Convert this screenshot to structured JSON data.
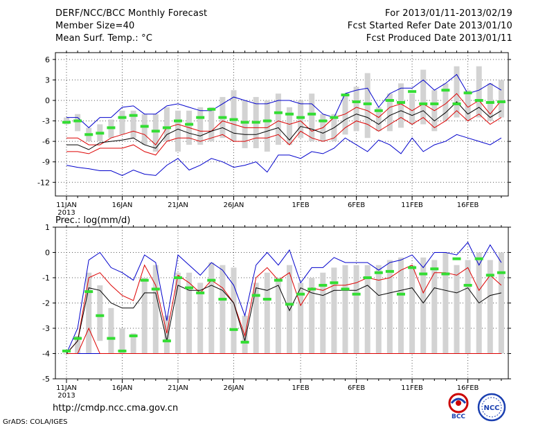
{
  "header": {
    "title": "DERF/NCC/BCC Monthly Forecast",
    "member_size": "Member Size=40",
    "variable": "Mean Surf. Temp.: °C",
    "period": "For 2013/01/11-2013/02/19",
    "refer_date": "Fcst Started Refer Date 2013/01/10",
    "produced_date": "Fcst Produced Date 2013/01/11"
  },
  "footer": {
    "url": "http://cmdp.ncc.cma.gov.cn",
    "grads": "GrADS: COLA/IGES",
    "logo_left": "BCC",
    "logo_right": "NCC"
  },
  "colors": {
    "blue": "#0000cc",
    "red": "#dd0000",
    "black": "#000000",
    "green": "#33dd33",
    "box": "#d3d3d3",
    "grid": "#555555"
  },
  "chart_data": [
    {
      "type": "box",
      "title": "Mean Surf. Temp.: °C",
      "ylim": [
        -14,
        7
      ],
      "yticks": [
        6,
        3,
        0,
        -3,
        -6,
        -9,
        -12
      ],
      "xlabels": [
        "11JAN",
        "16JAN",
        "21JAN",
        "26JAN",
        "1FEB",
        "6FEB",
        "11FEB",
        "16FEB"
      ],
      "xlabel_days": [
        1,
        6,
        11,
        16,
        22,
        27,
        32,
        37
      ],
      "year_label": "2013",
      "days": [
        1,
        2,
        3,
        4,
        5,
        6,
        7,
        8,
        9,
        10,
        11,
        12,
        13,
        14,
        15,
        16,
        17,
        18,
        19,
        20,
        21,
        22,
        23,
        24,
        25,
        26,
        27,
        28,
        29,
        30,
        31,
        32,
        33,
        34,
        35,
        36,
        37,
        38,
        39,
        40
      ],
      "max": [
        -2.5,
        -2.5,
        -4,
        -2.5,
        -2.5,
        -1,
        -0.8,
        -2,
        -2,
        -0.8,
        -0.5,
        -1,
        -1.5,
        -1.5,
        -0.5,
        0.5,
        0,
        -0.5,
        -0.5,
        0,
        0,
        -0.5,
        -0.5,
        -2,
        -2.5,
        1,
        1.5,
        1.8,
        -1,
        1,
        1.8,
        1.8,
        3,
        1.5,
        2.5,
        3.8,
        1,
        1.5,
        2.5,
        1.5
      ],
      "upper": [
        -5.5,
        -5.5,
        -6.5,
        -6.5,
        -5.5,
        -5,
        -4.5,
        -5,
        -6.5,
        -4,
        -3.5,
        -4,
        -4.5,
        -4.5,
        -3,
        -3.5,
        -4,
        -4,
        -4,
        -3,
        -3.5,
        -3,
        -4.5,
        -4,
        -2.5,
        -2,
        -1,
        -1.5,
        -2.5,
        -1,
        -0.5,
        -1.5,
        -0.5,
        -1.5,
        -0.5,
        1,
        -1,
        0,
        -2,
        0
      ],
      "mean": [
        -6.5,
        -6.5,
        -7.2,
        -6.2,
        -6,
        -5.8,
        -5.5,
        -6.5,
        -7,
        -5,
        -4.2,
        -4.8,
        -5.2,
        -4.5,
        -4,
        -4.8,
        -5,
        -5,
        -4.5,
        -4,
        -5.8,
        -3.8,
        -4.2,
        -4.8,
        -4,
        -2.8,
        -2,
        -2.5,
        -3.5,
        -2.2,
        -1.5,
        -2.2,
        -1.5,
        -3,
        -1.8,
        -0.2,
        -2,
        -1,
        -2.5,
        -1.5
      ],
      "lower": [
        -7.5,
        -7.5,
        -7.8,
        -7,
        -7,
        -7,
        -6.5,
        -7.5,
        -8,
        -6,
        -5.5,
        -5.5,
        -6,
        -5.5,
        -5,
        -6,
        -6,
        -5.5,
        -5.5,
        -5,
        -6.5,
        -4.5,
        -5.5,
        -6,
        -5.5,
        -4,
        -3,
        -3.5,
        -4.5,
        -3.5,
        -2.5,
        -3.5,
        -2.5,
        -4,
        -3,
        -1.5,
        -3,
        -2,
        -3.5,
        -2.5
      ],
      "min": [
        -9.5,
        -9.8,
        -10,
        -10.3,
        -10.3,
        -11,
        -10.2,
        -10.8,
        -11,
        -9.5,
        -8.5,
        -10.2,
        -9.5,
        -8.5,
        -9,
        -9.8,
        -9.5,
        -9,
        -10.5,
        -8,
        -8,
        -8.5,
        -7.5,
        -7.8,
        -7,
        -5.5,
        -6.5,
        -7.5,
        -5.8,
        -6.5,
        -7.8,
        -5.5,
        -7.5,
        -6.5,
        -6,
        -5,
        -5.5,
        -6,
        -6.5,
        -5.5
      ],
      "box_top": [
        -2.5,
        -2,
        -4,
        -3.5,
        -2.8,
        -1.5,
        -1.5,
        -2,
        -2,
        -1,
        -1.5,
        -1.5,
        -1,
        -1,
        0.5,
        1.5,
        0,
        0.5,
        0,
        1,
        -1,
        0,
        1,
        -2,
        -2,
        1,
        2,
        4,
        -1,
        1,
        2.5,
        1,
        4.5,
        1.5,
        2.5,
        5,
        1.5,
        5,
        2.5,
        3
      ],
      "box_bot": [
        -3.5,
        -4.5,
        -6,
        -6,
        -5.5,
        -5,
        -5.5,
        -6.5,
        -7.5,
        -6,
        -7.5,
        -6.5,
        -6.5,
        -6,
        -5.5,
        -6,
        -7,
        -7,
        -7.5,
        -6.5,
        -6.5,
        -5.5,
        -6,
        -6,
        -6,
        -5,
        -4.5,
        -5.5,
        -4.5,
        -4.5,
        -4,
        -3.5,
        -3.5,
        -4.5,
        -3,
        -2.5,
        -3,
        -2.5,
        -3,
        -2.5
      ],
      "green": [
        -3.2,
        -3,
        -5,
        -4.8,
        -4,
        -2.5,
        -2.2,
        -3.8,
        -4.5,
        -4,
        -3,
        -3.5,
        -2.5,
        -1.3,
        -2.5,
        -2.8,
        -3.2,
        -3.2,
        -3,
        -1.8,
        -2,
        -2.5,
        -2,
        -3,
        -2.5,
        0.8,
        -0.2,
        -0.5,
        -1.5,
        0,
        -0.3,
        1.3,
        -0.5,
        -0.5,
        1.5,
        -0.5,
        1.1,
        0,
        -0.3,
        -0.2
      ]
    },
    {
      "type": "box",
      "title": "Prec.: log(mm/d)",
      "ylim": [
        -5,
        1
      ],
      "yticks": [
        1,
        0,
        -1,
        -2,
        -3,
        -4,
        -5
      ],
      "xlabels": [
        "11JAN",
        "16JAN",
        "21JAN",
        "26JAN",
        "1FEB",
        "6FEB",
        "11FEB",
        "16FEB"
      ],
      "xlabel_days": [
        1,
        6,
        11,
        16,
        22,
        27,
        32,
        37
      ],
      "year_label": "2013",
      "days": [
        1,
        2,
        3,
        4,
        5,
        6,
        7,
        8,
        9,
        10,
        11,
        12,
        13,
        14,
        15,
        16,
        17,
        18,
        19,
        20,
        21,
        22,
        23,
        24,
        25,
        26,
        27,
        28,
        29,
        30,
        31,
        32,
        33,
        34,
        35,
        36,
        37,
        38,
        39,
        40
      ],
      "max": [
        -4,
        -3,
        -0.3,
        0,
        -0.6,
        -0.8,
        -1.1,
        -0.1,
        -0.4,
        -2.7,
        -0.1,
        -0.5,
        -0.9,
        -0.4,
        -0.7,
        -1.3,
        -2.5,
        -0.5,
        0,
        -0.5,
        0.1,
        -1.2,
        -0.6,
        -0.6,
        -0.2,
        -0.4,
        -0.4,
        -0.4,
        -0.7,
        -0.4,
        -0.3,
        -0.1,
        -0.6,
        0,
        0,
        -0.1,
        0.4,
        -0.5,
        0.3,
        -0.4
      ],
      "upper": [
        -4,
        -3.5,
        -1,
        -0.8,
        -1.3,
        -1.7,
        -1.9,
        -0.5,
        -1.3,
        -3.2,
        -0.9,
        -1.2,
        -1.6,
        -1.1,
        -1.4,
        -2,
        -3.3,
        -1,
        -0.6,
        -1.1,
        -0.8,
        -2.1,
        -1.4,
        -1.5,
        -1.3,
        -1.3,
        -1.2,
        -1,
        -1.1,
        -1,
        -0.7,
        -0.5,
        -1.6,
        -0.8,
        -0.8,
        -0.9,
        -0.6,
        -1.5,
        -0.9,
        -1.3
      ],
      "mean": [
        -4,
        -3.5,
        -1.4,
        -1.5,
        -2,
        -2.2,
        -2.2,
        -1.6,
        -1.6,
        -3.5,
        -1.3,
        -1.5,
        -1.5,
        -1.3,
        -1.5,
        -2,
        -3.5,
        -1.4,
        -1.5,
        -1.3,
        -2.3,
        -1.4,
        -1.6,
        -1.7,
        -1.5,
        -1.5,
        -1.5,
        -1.3,
        -1.7,
        -1.6,
        -1.5,
        -1.4,
        -2,
        -1.4,
        -1.5,
        -1.6,
        -1.4,
        -2,
        -1.7,
        -1.6
      ],
      "lower": [
        -4,
        -4,
        -3,
        -4,
        -4,
        -4,
        -4,
        -4,
        -4,
        -4,
        -4,
        -4,
        -4,
        -4,
        -4,
        -4,
        -4,
        -4,
        -4,
        -4,
        -4,
        -4,
        -4,
        -4,
        -4,
        -4,
        -4,
        -4,
        -4,
        -4,
        -4,
        -4,
        -4,
        -4,
        -4,
        -4,
        -4,
        -4,
        -4,
        -4
      ],
      "min": [
        -4,
        -4,
        -4,
        -4,
        -4,
        -4,
        -4,
        -4,
        -4,
        -4,
        -4,
        -4,
        -4,
        -4,
        -4,
        -4,
        -4,
        -4,
        -4,
        -4,
        -4,
        -4,
        -4,
        -4,
        -4,
        -4,
        -4,
        -4,
        -4,
        -4,
        -4,
        -4,
        -4,
        -4,
        -4,
        -4,
        -4,
        -4,
        -4,
        -4
      ],
      "box_top": [
        -4,
        -3.3,
        -0.8,
        -1.3,
        -2.2,
        -3,
        -3.2,
        -1,
        -0.5,
        -2.5,
        -0.8,
        -0.8,
        -1.2,
        -0.4,
        -0.5,
        -0.6,
        -2.5,
        -1.2,
        -0.8,
        -1,
        -0.5,
        -1.2,
        -1,
        -0.8,
        -0.6,
        -0.5,
        -0.5,
        -0.5,
        -0.5,
        -0.3,
        -0.2,
        -0.5,
        -0.2,
        -0.3,
        0,
        -0.5,
        -0.3,
        0,
        -0.3,
        0
      ],
      "box_bot": [
        -4,
        -4,
        -4,
        -3.5,
        -4,
        -4,
        -4,
        -4,
        -4,
        -4,
        -4,
        -4,
        -4,
        -4,
        -4,
        -4,
        -4,
        -4,
        -4,
        -4,
        -4,
        -4,
        -4,
        -4,
        -4,
        -4,
        -4,
        -4,
        -4,
        -4,
        -4,
        -4,
        -4,
        -4,
        -4,
        -4,
        -4,
        -4,
        -4,
        -4
      ],
      "green": [
        -3.9,
        -3.4,
        -1.55,
        -2.5,
        -3.4,
        -3.9,
        -3.3,
        -1.1,
        -1.45,
        -3.5,
        -1.0,
        -1.4,
        -1.6,
        -1.1,
        -1.85,
        -3.05,
        -3.55,
        -1.7,
        -1.85,
        -1.1,
        -2.05,
        -1.65,
        -1.45,
        -1.3,
        -1.2,
        -1.45,
        -1.65,
        -1.0,
        -0.8,
        -0.75,
        -1.65,
        -0.6,
        -0.85,
        -0.65,
        -0.85,
        -0.25,
        -1.3,
        -0.25,
        -0.9,
        -0.8
      ]
    }
  ]
}
